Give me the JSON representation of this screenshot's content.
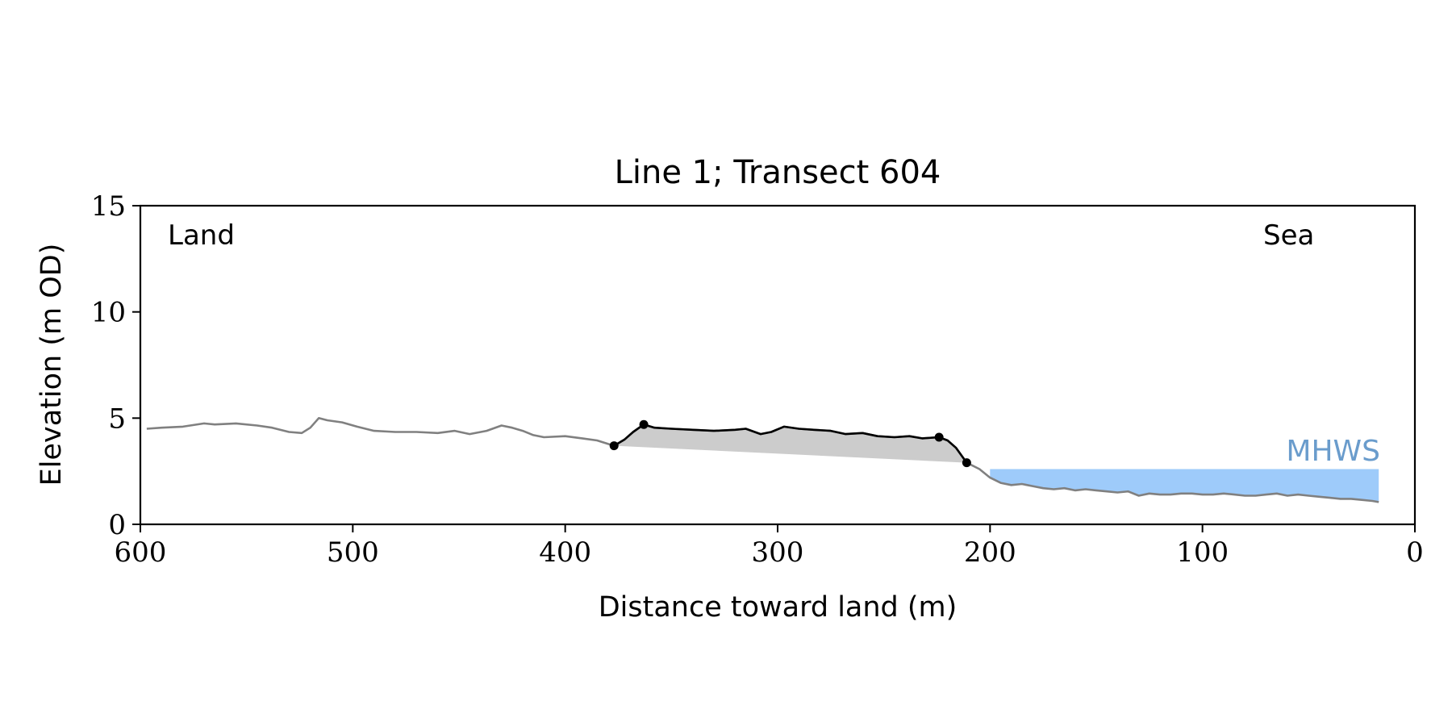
{
  "chart_data": {
    "type": "line",
    "title": "Line 1; Transect 604",
    "xlabel": "Distance toward land (m)",
    "ylabel": "Elevation (m OD)",
    "xlim": [
      600,
      0
    ],
    "ylim": [
      0,
      15
    ],
    "x_ticks": [
      "600",
      "500",
      "400",
      "300",
      "200",
      "100",
      "0"
    ],
    "y_ticks": [
      "0",
      "5",
      "10",
      "15"
    ],
    "grid": false,
    "annotations": {
      "land": "Land",
      "sea": "Sea",
      "mhws": "MHWS"
    },
    "colors": {
      "profile": "#808080",
      "dune": "#000000",
      "dune_fill": "#cccccc",
      "water": "#9ecbfa",
      "mhws_label": "#6a9ccc",
      "axes": "#000000"
    },
    "mhws": {
      "elevation": 2.6,
      "x_range": [
        200,
        17
      ]
    },
    "dune": {
      "toe": {
        "x": 377,
        "y": 3.7
      },
      "crest": {
        "x": 363,
        "y": 4.7
      },
      "heel": {
        "x": 224,
        "y": 4.1
      },
      "seaward_toe": {
        "x": 211,
        "y": 2.9
      },
      "points": [
        [
          377,
          3.7
        ],
        [
          372,
          4.0
        ],
        [
          368,
          4.35
        ],
        [
          363,
          4.7
        ],
        [
          358,
          4.55
        ],
        [
          350,
          4.5
        ],
        [
          340,
          4.45
        ],
        [
          330,
          4.4
        ],
        [
          320,
          4.45
        ],
        [
          315,
          4.5
        ],
        [
          308,
          4.25
        ],
        [
          303,
          4.35
        ],
        [
          297,
          4.6
        ],
        [
          290,
          4.5
        ],
        [
          283,
          4.45
        ],
        [
          275,
          4.4
        ],
        [
          268,
          4.25
        ],
        [
          260,
          4.3
        ],
        [
          253,
          4.15
        ],
        [
          245,
          4.1
        ],
        [
          238,
          4.15
        ],
        [
          232,
          4.05
        ],
        [
          224,
          4.1
        ],
        [
          220,
          3.95
        ],
        [
          216,
          3.6
        ],
        [
          211,
          2.9
        ]
      ],
      "base_points": [
        [
          377,
          3.7
        ],
        [
          211,
          2.9
        ]
      ]
    },
    "series": [
      {
        "points": [
          [
            597,
            4.5
          ],
          [
            590,
            4.55
          ],
          [
            580,
            4.6
          ],
          [
            570,
            4.75
          ],
          [
            565,
            4.7
          ],
          [
            555,
            4.75
          ],
          [
            545,
            4.65
          ],
          [
            538,
            4.55
          ],
          [
            530,
            4.35
          ],
          [
            524,
            4.3
          ],
          [
            520,
            4.55
          ],
          [
            516,
            5.0
          ],
          [
            512,
            4.9
          ],
          [
            505,
            4.8
          ],
          [
            498,
            4.6
          ],
          [
            490,
            4.4
          ],
          [
            480,
            4.35
          ],
          [
            470,
            4.35
          ],
          [
            460,
            4.3
          ],
          [
            452,
            4.4
          ],
          [
            445,
            4.25
          ],
          [
            437,
            4.4
          ],
          [
            430,
            4.65
          ],
          [
            425,
            4.55
          ],
          [
            420,
            4.4
          ],
          [
            415,
            4.2
          ],
          [
            410,
            4.1
          ],
          [
            400,
            4.15
          ],
          [
            392,
            4.05
          ],
          [
            385,
            3.95
          ],
          [
            377,
            3.7
          ],
          [
            372,
            4.0
          ],
          [
            368,
            4.35
          ],
          [
            363,
            4.7
          ],
          [
            358,
            4.55
          ],
          [
            350,
            4.5
          ],
          [
            340,
            4.45
          ],
          [
            330,
            4.4
          ],
          [
            320,
            4.45
          ],
          [
            315,
            4.5
          ],
          [
            308,
            4.25
          ],
          [
            303,
            4.35
          ],
          [
            297,
            4.6
          ],
          [
            290,
            4.5
          ],
          [
            283,
            4.45
          ],
          [
            275,
            4.4
          ],
          [
            268,
            4.25
          ],
          [
            260,
            4.3
          ],
          [
            253,
            4.15
          ],
          [
            245,
            4.1
          ],
          [
            238,
            4.15
          ],
          [
            232,
            4.05
          ],
          [
            224,
            4.1
          ],
          [
            220,
            3.95
          ],
          [
            216,
            3.6
          ],
          [
            211,
            2.9
          ],
          [
            205,
            2.6
          ],
          [
            200,
            2.2
          ],
          [
            195,
            1.95
          ],
          [
            190,
            1.85
          ],
          [
            185,
            1.9
          ],
          [
            180,
            1.8
          ],
          [
            175,
            1.7
          ],
          [
            170,
            1.65
          ],
          [
            165,
            1.7
          ],
          [
            160,
            1.6
          ],
          [
            155,
            1.65
          ],
          [
            150,
            1.6
          ],
          [
            145,
            1.55
          ],
          [
            140,
            1.5
          ],
          [
            135,
            1.55
          ],
          [
            130,
            1.35
          ],
          [
            125,
            1.45
          ],
          [
            120,
            1.4
          ],
          [
            115,
            1.4
          ],
          [
            110,
            1.45
          ],
          [
            105,
            1.45
          ],
          [
            100,
            1.4
          ],
          [
            95,
            1.4
          ],
          [
            90,
            1.45
          ],
          [
            85,
            1.4
          ],
          [
            80,
            1.35
          ],
          [
            75,
            1.35
          ],
          [
            70,
            1.4
          ],
          [
            65,
            1.45
          ],
          [
            60,
            1.35
          ],
          [
            55,
            1.4
          ],
          [
            50,
            1.35
          ],
          [
            45,
            1.3
          ],
          [
            40,
            1.25
          ],
          [
            35,
            1.2
          ],
          [
            30,
            1.2
          ],
          [
            25,
            1.15
          ],
          [
            20,
            1.1
          ],
          [
            17,
            1.05
          ]
        ]
      }
    ]
  }
}
